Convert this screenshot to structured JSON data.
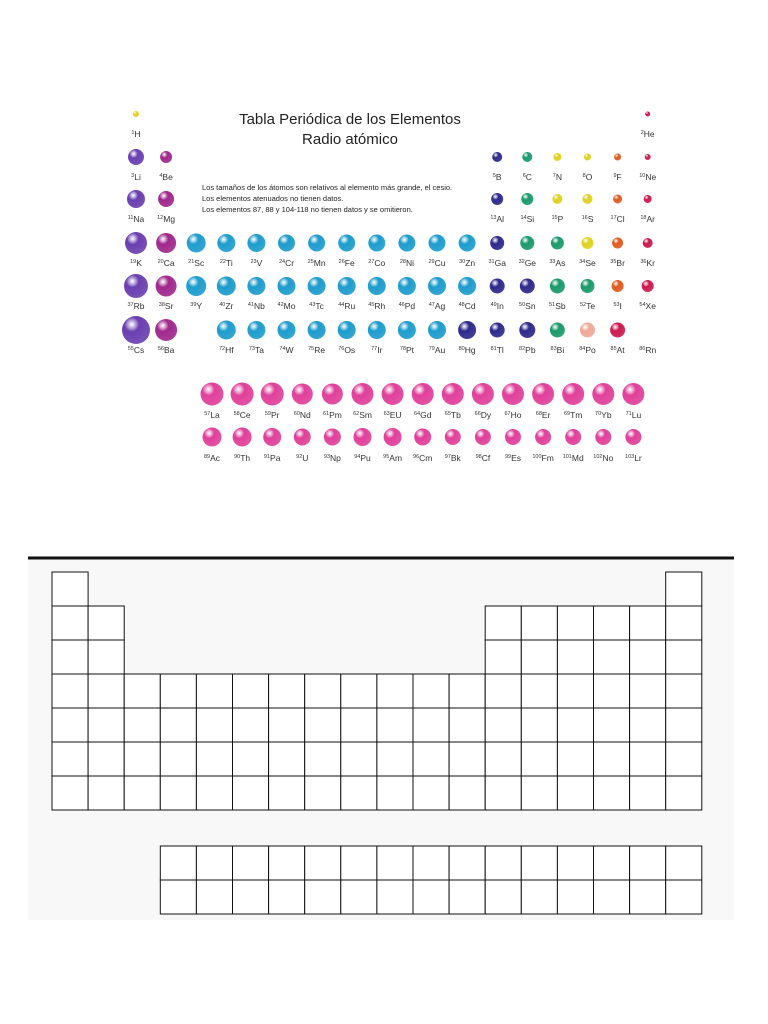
{
  "header": {
    "title": "Tabla Periódica de los Elementos",
    "subtitle": "Radio atómico"
  },
  "notes": [
    "Los tamaños de los átomos son relativos al elemento más grande, el cesio.",
    "Los elementos atenuados no tienen datos.",
    "Los elementos 87, 88 y 104-118 no tienen datos y se omitieron."
  ],
  "periodic_table": {
    "rows": [
      [
        {
          "number": 1,
          "symbol": "H"
        },
        {
          "number": 2,
          "symbol": "He"
        }
      ],
      [
        {
          "number": 3,
          "symbol": "Li"
        },
        {
          "number": 4,
          "symbol": "Be"
        },
        {
          "number": 5,
          "symbol": "B"
        },
        {
          "number": 6,
          "symbol": "C"
        },
        {
          "number": 7,
          "symbol": "N"
        },
        {
          "number": 8,
          "symbol": "O"
        },
        {
          "number": 9,
          "symbol": "F"
        },
        {
          "number": 10,
          "symbol": "Ne"
        }
      ],
      [
        {
          "number": 11,
          "symbol": "Na"
        },
        {
          "number": 12,
          "symbol": "Mg"
        },
        {
          "number": 13,
          "symbol": "Al"
        },
        {
          "number": 14,
          "symbol": "Si"
        },
        {
          "number": 15,
          "symbol": "P"
        },
        {
          "number": 16,
          "symbol": "S"
        },
        {
          "number": 17,
          "symbol": "Cl"
        },
        {
          "number": 18,
          "symbol": "Ar"
        }
      ],
      [
        {
          "number": 19,
          "symbol": "K"
        },
        {
          "number": 20,
          "symbol": "Ca"
        },
        {
          "number": 21,
          "symbol": "Sc"
        },
        {
          "number": 22,
          "symbol": "Ti"
        },
        {
          "number": 23,
          "symbol": "V"
        },
        {
          "number": 24,
          "symbol": "Cr"
        },
        {
          "number": 25,
          "symbol": "Mn"
        },
        {
          "number": 26,
          "symbol": "Fe"
        },
        {
          "number": 27,
          "symbol": "Co"
        },
        {
          "number": 28,
          "symbol": "Ni"
        },
        {
          "number": 29,
          "symbol": "Cu"
        },
        {
          "number": 30,
          "symbol": "Zn"
        },
        {
          "number": 31,
          "symbol": "Ga"
        },
        {
          "number": 32,
          "symbol": "Ge"
        },
        {
          "number": 33,
          "symbol": "As"
        },
        {
          "number": 34,
          "symbol": "Se"
        },
        {
          "number": 35,
          "symbol": "Br"
        },
        {
          "number": 36,
          "symbol": "Kr"
        }
      ],
      [
        {
          "number": 37,
          "symbol": "Rb"
        },
        {
          "number": 38,
          "symbol": "Sr"
        },
        {
          "number": 39,
          "symbol": "Y"
        },
        {
          "number": 40,
          "symbol": "Zr"
        },
        {
          "number": 41,
          "symbol": "Nb"
        },
        {
          "number": 42,
          "symbol": "Mo"
        },
        {
          "number": 43,
          "symbol": "Tc"
        },
        {
          "number": 44,
          "symbol": "Ru"
        },
        {
          "number": 45,
          "symbol": "Rh"
        },
        {
          "number": 46,
          "symbol": "Pd"
        },
        {
          "number": 47,
          "symbol": "Ag"
        },
        {
          "number": 48,
          "symbol": "Cd"
        },
        {
          "number": 49,
          "symbol": "In"
        },
        {
          "number": 50,
          "symbol": "Sn"
        },
        {
          "number": 51,
          "symbol": "Sb"
        },
        {
          "number": 52,
          "symbol": "Te"
        },
        {
          "number": 53,
          "symbol": "I"
        },
        {
          "number": 54,
          "symbol": "Xe"
        }
      ],
      [
        {
          "number": 55,
          "symbol": "Cs"
        },
        {
          "number": 56,
          "symbol": "Ba"
        },
        {
          "number": 72,
          "symbol": "Hf"
        },
        {
          "number": 73,
          "symbol": "Ta"
        },
        {
          "number": 74,
          "symbol": "W"
        },
        {
          "number": 75,
          "symbol": "Re"
        },
        {
          "number": 76,
          "symbol": "Os"
        },
        {
          "number": 77,
          "symbol": "Ir"
        },
        {
          "number": 78,
          "symbol": "Pt"
        },
        {
          "number": 79,
          "symbol": "Au"
        },
        {
          "number": 80,
          "symbol": "Hg"
        },
        {
          "number": 81,
          "symbol": "Tl"
        },
        {
          "number": 82,
          "symbol": "Pb"
        },
        {
          "number": 83,
          "symbol": "Bi"
        },
        {
          "number": 84,
          "symbol": "Po"
        },
        {
          "number": 85,
          "symbol": "At"
        },
        {
          "number": 86,
          "symbol": "Rn"
        }
      ]
    ],
    "lanthanides": [
      {
        "number": 57,
        "symbol": "La"
      },
      {
        "number": 58,
        "symbol": "Ce"
      },
      {
        "number": 59,
        "symbol": "Pr"
      },
      {
        "number": 60,
        "symbol": "Nd"
      },
      {
        "number": 61,
        "symbol": "Pm"
      },
      {
        "number": 62,
        "symbol": "Sm"
      },
      {
        "number": 63,
        "symbol": "EU"
      },
      {
        "number": 64,
        "symbol": "Gd"
      },
      {
        "number": 65,
        "symbol": "Tb"
      },
      {
        "number": 66,
        "symbol": "Dy"
      },
      {
        "number": 67,
        "symbol": "Ho"
      },
      {
        "number": 68,
        "symbol": "Er"
      },
      {
        "number": 69,
        "symbol": "Tm"
      },
      {
        "number": 70,
        "symbol": "Yb"
      },
      {
        "number": 71,
        "symbol": "Lu"
      }
    ],
    "actinides": [
      {
        "number": 89,
        "symbol": "Ac"
      },
      {
        "number": 90,
        "symbol": "Th"
      },
      {
        "number": 91,
        "symbol": "Pa"
      },
      {
        "number": 92,
        "symbol": "U"
      },
      {
        "number": 93,
        "symbol": "Np"
      },
      {
        "number": 94,
        "symbol": "Pu"
      },
      {
        "number": 95,
        "symbol": "Am"
      },
      {
        "number": 96,
        "symbol": "Cm"
      },
      {
        "number": 97,
        "symbol": "Bk"
      },
      {
        "number": 98,
        "symbol": "Cf"
      },
      {
        "number": 99,
        "symbol": "Es"
      },
      {
        "number": 100,
        "symbol": "Fm"
      },
      {
        "number": 101,
        "symbol": "Md"
      },
      {
        "number": 102,
        "symbol": "No"
      },
      {
        "number": 103,
        "symbol": "Lr"
      }
    ]
  }
}
